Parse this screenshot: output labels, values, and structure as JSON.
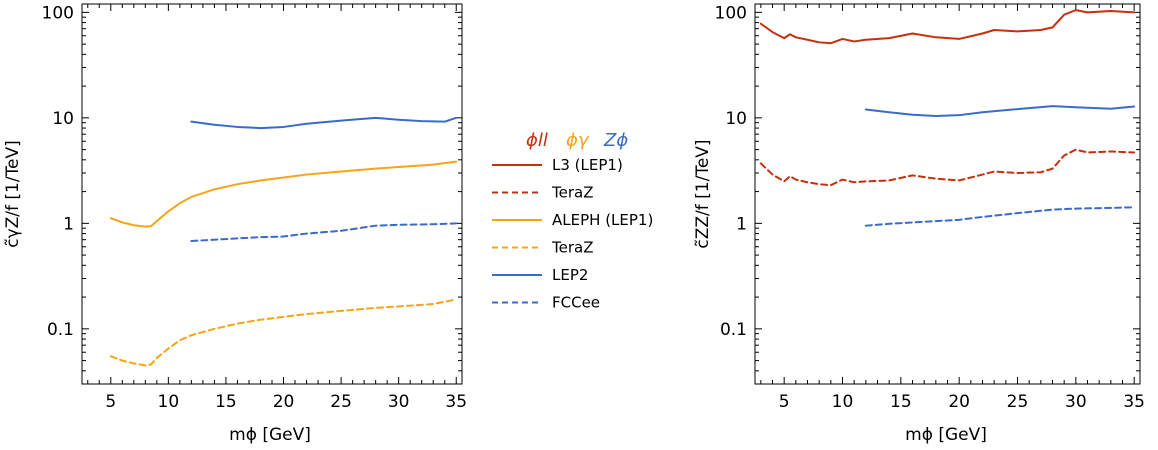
{
  "colors": {
    "red": "#C4300E",
    "orange": "#F5A515",
    "blue": "#3A6BC8"
  },
  "legend": {
    "header": [
      {
        "text": "ϕll",
        "color": "#C4300E"
      },
      {
        "text": "ϕγ",
        "color": "#F5A515"
      },
      {
        "text": "Zϕ",
        "color": "#3A6BC8"
      }
    ],
    "entries": [
      {
        "label": "L3 (LEP1)",
        "color": "#C4300E",
        "dashed": false
      },
      {
        "label": "TeraZ",
        "color": "#C4300E",
        "dashed": true
      },
      {
        "label": "ALEPH (LEP1)",
        "color": "#F5A515",
        "dashed": false
      },
      {
        "label": "TeraZ",
        "color": "#F5A515",
        "dashed": true
      },
      {
        "label": "LEP2",
        "color": "#3A6BC8",
        "dashed": false
      },
      {
        "label": "FCCee",
        "color": "#3A6BC8",
        "dashed": true
      }
    ]
  },
  "chart_data": [
    {
      "type": "line",
      "xlabel": "mϕ [GeV]",
      "ylabel": "c̃γZ/f [1/TeV]",
      "xlim": [
        2.5,
        35.5
      ],
      "ylim": [
        0.03,
        120
      ],
      "log_y": true,
      "grid": false,
      "x_ticks": [
        5,
        10,
        15,
        20,
        25,
        30,
        35
      ],
      "y_ticks": [
        {
          "value": 0.1,
          "label": "0.1"
        },
        {
          "value": 1,
          "label": "1"
        },
        {
          "value": 10,
          "label": "10"
        },
        {
          "value": 100,
          "label": "100"
        }
      ],
      "series": [
        {
          "name": "ALEPH (LEP1)",
          "color": "#F5A515",
          "dashed": false,
          "points": [
            [
              5,
              1.12
            ],
            [
              6,
              1.02
            ],
            [
              7,
              0.96
            ],
            [
              8,
              0.93
            ],
            [
              8.5,
              0.94
            ],
            [
              9,
              1.05
            ],
            [
              10,
              1.3
            ],
            [
              11,
              1.55
            ],
            [
              12,
              1.78
            ],
            [
              14,
              2.1
            ],
            [
              16,
              2.35
            ],
            [
              18,
              2.55
            ],
            [
              20,
              2.72
            ],
            [
              22,
              2.9
            ],
            [
              25,
              3.1
            ],
            [
              28,
              3.3
            ],
            [
              30,
              3.42
            ],
            [
              33,
              3.6
            ],
            [
              35,
              3.85
            ]
          ]
        },
        {
          "name": "TeraZ",
          "color": "#F5A515",
          "dashed": true,
          "points": [
            [
              5,
              0.055
            ],
            [
              6,
              0.05
            ],
            [
              7,
              0.047
            ],
            [
              8,
              0.045
            ],
            [
              8.5,
              0.046
            ],
            [
              9,
              0.053
            ],
            [
              10,
              0.065
            ],
            [
              11,
              0.078
            ],
            [
              12,
              0.087
            ],
            [
              14,
              0.1
            ],
            [
              16,
              0.112
            ],
            [
              18,
              0.122
            ],
            [
              20,
              0.13
            ],
            [
              22,
              0.138
            ],
            [
              25,
              0.148
            ],
            [
              28,
              0.158
            ],
            [
              30,
              0.163
            ],
            [
              33,
              0.172
            ],
            [
              35,
              0.19
            ]
          ]
        },
        {
          "name": "LEP2",
          "color": "#3A6BC8",
          "dashed": false,
          "points": [
            [
              12,
              9.2
            ],
            [
              14,
              8.6
            ],
            [
              16,
              8.2
            ],
            [
              18,
              8.0
            ],
            [
              20,
              8.2
            ],
            [
              22,
              8.8
            ],
            [
              25,
              9.4
            ],
            [
              27,
              9.8
            ],
            [
              28,
              10.0
            ],
            [
              30,
              9.6
            ],
            [
              32,
              9.3
            ],
            [
              34,
              9.2
            ],
            [
              35,
              10.0
            ]
          ]
        },
        {
          "name": "FCCee",
          "color": "#3A6BC8",
          "dashed": true,
          "points": [
            [
              12,
              0.68
            ],
            [
              14,
              0.7
            ],
            [
              16,
              0.72
            ],
            [
              18,
              0.74
            ],
            [
              20,
              0.75
            ],
            [
              22,
              0.8
            ],
            [
              25,
              0.85
            ],
            [
              28,
              0.95
            ],
            [
              30,
              0.97
            ],
            [
              33,
              0.98
            ],
            [
              35,
              1.0
            ]
          ]
        }
      ]
    },
    {
      "type": "line",
      "xlabel": "mϕ [GeV]",
      "ylabel": "c̃ZZ/f [1/TeV]",
      "xlim": [
        2.5,
        35.5
      ],
      "ylim": [
        0.03,
        120
      ],
      "log_y": true,
      "grid": false,
      "x_ticks": [
        5,
        10,
        15,
        20,
        25,
        30,
        35
      ],
      "y_ticks": [
        {
          "value": 0.1,
          "label": "0.1"
        },
        {
          "value": 1,
          "label": "1"
        },
        {
          "value": 10,
          "label": "10"
        },
        {
          "value": 100,
          "label": "100"
        }
      ],
      "series": [
        {
          "name": "L3 (LEP1)",
          "color": "#C4300E",
          "dashed": false,
          "points": [
            [
              3,
              78
            ],
            [
              4,
              65
            ],
            [
              5,
              57
            ],
            [
              5.5,
              62
            ],
            [
              6,
              58
            ],
            [
              7,
              55
            ],
            [
              8,
              52
            ],
            [
              9,
              51
            ],
            [
              10,
              56
            ],
            [
              11,
              53
            ],
            [
              12,
              55
            ],
            [
              14,
              57
            ],
            [
              16,
              63
            ],
            [
              18,
              58
            ],
            [
              20,
              56
            ],
            [
              22,
              63
            ],
            [
              23,
              68
            ],
            [
              25,
              66
            ],
            [
              27,
              68
            ],
            [
              28,
              72
            ],
            [
              29,
              95
            ],
            [
              30,
              105
            ],
            [
              31,
              100
            ],
            [
              33,
              103
            ],
            [
              35,
              100
            ]
          ]
        },
        {
          "name": "TeraZ",
          "color": "#C4300E",
          "dashed": true,
          "points": [
            [
              3,
              3.7
            ],
            [
              4,
              2.9
            ],
            [
              5,
              2.5
            ],
            [
              5.5,
              2.8
            ],
            [
              6,
              2.6
            ],
            [
              7,
              2.45
            ],
            [
              8,
              2.35
            ],
            [
              9,
              2.3
            ],
            [
              10,
              2.6
            ],
            [
              11,
              2.45
            ],
            [
              12,
              2.5
            ],
            [
              14,
              2.55
            ],
            [
              16,
              2.85
            ],
            [
              18,
              2.65
            ],
            [
              20,
              2.55
            ],
            [
              22,
              2.9
            ],
            [
              23,
              3.1
            ],
            [
              25,
              3.0
            ],
            [
              27,
              3.05
            ],
            [
              28,
              3.3
            ],
            [
              29,
              4.4
            ],
            [
              30,
              5.0
            ],
            [
              31,
              4.7
            ],
            [
              33,
              4.8
            ],
            [
              35,
              4.7
            ]
          ]
        },
        {
          "name": "LEP2",
          "color": "#3A6BC8",
          "dashed": false,
          "points": [
            [
              12,
              12
            ],
            [
              14,
              11.3
            ],
            [
              16,
              10.7
            ],
            [
              18,
              10.4
            ],
            [
              20,
              10.6
            ],
            [
              22,
              11.3
            ],
            [
              25,
              12.1
            ],
            [
              28,
              12.9
            ],
            [
              30,
              12.6
            ],
            [
              33,
              12.2
            ],
            [
              35,
              12.8
            ]
          ]
        },
        {
          "name": "FCCee",
          "color": "#3A6BC8",
          "dashed": true,
          "points": [
            [
              12,
              0.95
            ],
            [
              14,
              0.99
            ],
            [
              16,
              1.02
            ],
            [
              18,
              1.05
            ],
            [
              20,
              1.08
            ],
            [
              22,
              1.15
            ],
            [
              25,
              1.25
            ],
            [
              28,
              1.35
            ],
            [
              30,
              1.38
            ],
            [
              33,
              1.4
            ],
            [
              35,
              1.42
            ]
          ]
        }
      ]
    }
  ]
}
